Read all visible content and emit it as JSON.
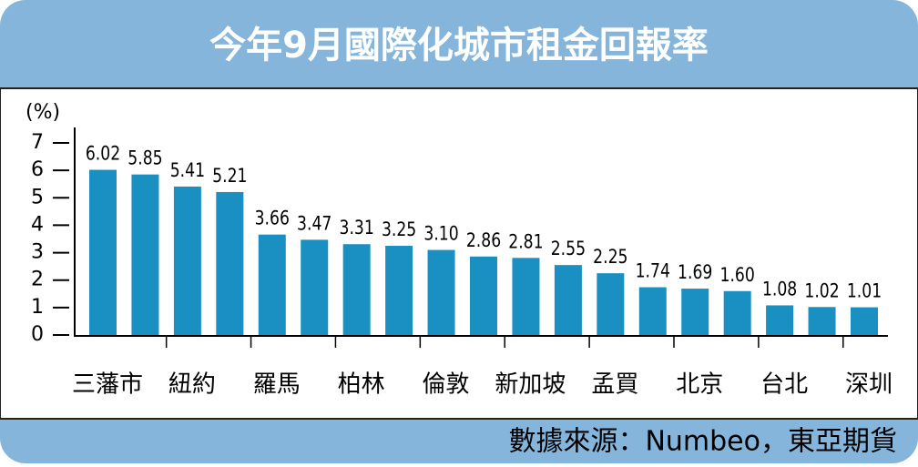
{
  "chart_data": {
    "type": "bar",
    "title": "今年9月國際化城市租金回報率",
    "y_label": "(%)",
    "source": "數據來源：Numbeo，東亞期貨",
    "categories": [
      "三藩市",
      null,
      "紐約",
      null,
      "羅馬",
      null,
      "柏林",
      null,
      "倫敦",
      null,
      "新加坡",
      null,
      "孟買",
      null,
      "北京",
      null,
      "台北",
      null,
      "深圳"
    ],
    "values": [
      6.02,
      5.85,
      5.41,
      5.21,
      3.66,
      3.47,
      3.31,
      3.25,
      3.1,
      2.86,
      2.81,
      2.55,
      2.25,
      1.74,
      1.69,
      1.6,
      1.08,
      1.02,
      1.01
    ],
    "value_labels": [
      "6.02",
      "5.85",
      "5.41",
      "5.21",
      "3.66",
      "3.47",
      "3.31",
      "3.25",
      "3.10",
      "2.86",
      "2.81",
      "2.55",
      "2.25",
      "1.74",
      "1.69",
      "1.60",
      "1.08",
      "1.02",
      "1.01"
    ],
    "color": "#1a8fc2",
    "ylim": [
      0,
      7
    ],
    "yticks": [
      0,
      1,
      2,
      3,
      4,
      5,
      6,
      7
    ]
  }
}
